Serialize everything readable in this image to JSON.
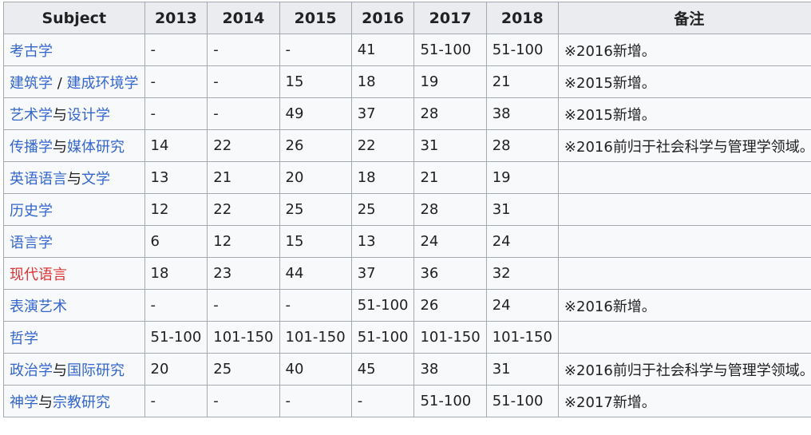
{
  "table": {
    "headers": [
      "Subject",
      "2013",
      "2014",
      "2015",
      "2016",
      "2017",
      "2018",
      "备注"
    ],
    "rows": [
      {
        "subject": [
          {
            "text": "考古学",
            "link": true
          }
        ],
        "values": [
          "-",
          "-",
          "-",
          "41",
          "51-100",
          "51-100"
        ],
        "note": "※2016新增。"
      },
      {
        "subject": [
          {
            "text": "建筑学",
            "link": true
          },
          {
            "text": " / ",
            "link": false
          },
          {
            "text": "建成环境学",
            "link": true
          }
        ],
        "values": [
          "-",
          "-",
          "15",
          "18",
          "19",
          "21"
        ],
        "note": "※2015新增。"
      },
      {
        "subject": [
          {
            "text": "艺术学",
            "link": true
          },
          {
            "text": "与",
            "link": false
          },
          {
            "text": "设计学",
            "link": true
          }
        ],
        "values": [
          "-",
          "-",
          "49",
          "37",
          "28",
          "38"
        ],
        "note": "※2015新增。"
      },
      {
        "subject": [
          {
            "text": "传播学",
            "link": true
          },
          {
            "text": "与",
            "link": false
          },
          {
            "text": "媒体研究",
            "link": true
          }
        ],
        "values": [
          "14",
          "22",
          "26",
          "22",
          "31",
          "28"
        ],
        "note": "※2016前归于社会科学与管理学领域。"
      },
      {
        "subject": [
          {
            "text": "英语语言",
            "link": true
          },
          {
            "text": "与",
            "link": false
          },
          {
            "text": "文学",
            "link": true
          }
        ],
        "values": [
          "13",
          "21",
          "20",
          "18",
          "21",
          "19"
        ],
        "note": ""
      },
      {
        "subject": [
          {
            "text": "历史学",
            "link": true
          }
        ],
        "values": [
          "12",
          "22",
          "25",
          "25",
          "28",
          "31"
        ],
        "note": ""
      },
      {
        "subject": [
          {
            "text": "语言学",
            "link": true
          }
        ],
        "values": [
          "6",
          "12",
          "15",
          "13",
          "24",
          "24"
        ],
        "note": ""
      },
      {
        "subject": [
          {
            "text": "现代语言",
            "link": true,
            "new": true
          }
        ],
        "values": [
          "18",
          "23",
          "44",
          "37",
          "36",
          "32"
        ],
        "note": ""
      },
      {
        "subject": [
          {
            "text": "表演艺术",
            "link": true
          }
        ],
        "values": [
          "-",
          "-",
          "-",
          "51-100",
          "26",
          "24"
        ],
        "note": "※2016新增。"
      },
      {
        "subject": [
          {
            "text": "哲学",
            "link": true
          }
        ],
        "values": [
          "51-100",
          "101-150",
          "101-150",
          "51-100",
          "101-150",
          "101-150"
        ],
        "note": ""
      },
      {
        "subject": [
          {
            "text": "政治学",
            "link": true
          },
          {
            "text": "与",
            "link": false
          },
          {
            "text": "国际研究",
            "link": true
          }
        ],
        "values": [
          "20",
          "25",
          "40",
          "45",
          "38",
          "31"
        ],
        "note": "※2016前归于社会科学与管理学领域。"
      },
      {
        "subject": [
          {
            "text": "神学",
            "link": true
          },
          {
            "text": "与",
            "link": false
          },
          {
            "text": "宗教研究",
            "link": true
          }
        ],
        "values": [
          "-",
          "-",
          "-",
          "-",
          "51-100",
          "51-100"
        ],
        "note": "※2017新增。"
      }
    ]
  },
  "colors": {
    "link": "#3366cc",
    "new_link": "#dd3333",
    "header_bg": "#eaecf0",
    "cell_bg": "#f8f9fa",
    "border": "#a2a9b1"
  }
}
